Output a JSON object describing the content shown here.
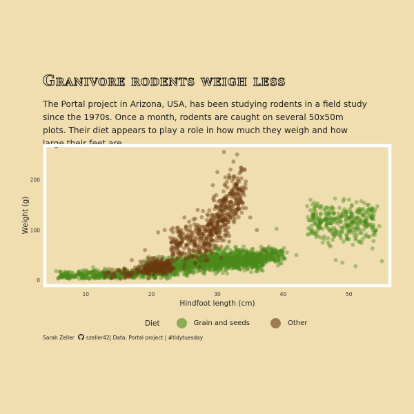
{
  "title": "Granivore rodents weigh less",
  "subtitle": "The Portal project in Arizona, USA, has been studying rodents in a field study since the 1970s. Once a month, rodents are caught on several 50x50m plots. Their diet appears to play a role in how much they weigh and how large their feet are.",
  "caption": {
    "author": "Sarah Zeller",
    "github_icon": "github-icon",
    "handle": "szeller42",
    "source": "| Data: Portal project | #tidytuesday"
  },
  "legend": {
    "title": "Diet",
    "items": [
      {
        "label": "Grain and seeds",
        "color": "#4a8a1a"
      },
      {
        "label": "Other",
        "color": "#6b3a10"
      }
    ]
  },
  "colors": {
    "background": "#f0deb0",
    "panel_border": "#ffffff",
    "grain": "#4a8a1a",
    "other": "#6b3a10"
  },
  "chart_data": {
    "type": "scatter",
    "xlabel": "Hindfoot length (cm)",
    "ylabel": "Weight (g)",
    "xlim": [
      4,
      56
    ],
    "ylim": [
      -8,
      265
    ],
    "x_ticks": [
      10,
      20,
      30,
      40,
      50
    ],
    "y_ticks": [
      0,
      100,
      200
    ],
    "grid": false,
    "legend_position": "bottom",
    "series": [
      {
        "name": "Grain and seeds",
        "color": "#4a8a1a",
        "clusters": [
          {
            "x_range": [
              6,
              19
            ],
            "y_center": [
              8,
              14
            ],
            "y_spread": 5,
            "n": 320
          },
          {
            "x_range": [
              19,
              29
            ],
            "y_center": [
              18,
              38
            ],
            "y_spread": 9,
            "n": 650
          },
          {
            "x_range": [
              29,
              37
            ],
            "y_center": [
              40,
              40
            ],
            "y_spread": 10,
            "n": 700
          },
          {
            "x_range": [
              37,
              40
            ],
            "y_center": [
              50,
              48
            ],
            "y_spread": 8,
            "n": 120
          },
          {
            "x_range": [
              44,
              54
            ],
            "y_center": [
              118,
              118
            ],
            "y_spread": 20,
            "n": 330
          }
        ],
        "points": [
          [
            5.5,
            18
          ],
          [
            6.5,
            8
          ],
          [
            7,
            14
          ],
          [
            21,
            47
          ],
          [
            30,
            62
          ],
          [
            34,
            67
          ],
          [
            38,
            55
          ],
          [
            39,
            102
          ],
          [
            44,
            92
          ],
          [
            46,
            75
          ],
          [
            47,
            70
          ],
          [
            48,
            40
          ],
          [
            49,
            35
          ],
          [
            50,
            160
          ],
          [
            51,
            28
          ],
          [
            53,
            150
          ],
          [
            54,
            140
          ],
          [
            55,
            38
          ],
          [
            28,
            15
          ],
          [
            42,
            50
          ]
        ]
      },
      {
        "name": "Other",
        "color": "#6b3a10",
        "clusters": [
          {
            "x_range": [
              13,
              19
            ],
            "y_center": [
              12,
              18
            ],
            "y_spread": 6,
            "n": 60
          },
          {
            "x_range": [
              19,
              23
            ],
            "y_center": [
              25,
              28
            ],
            "y_spread": 8,
            "n": 200
          },
          {
            "x_range": [
              23,
              29
            ],
            "y_center": [
              60,
              90
            ],
            "y_spread": 22,
            "n": 240
          },
          {
            "x_range": [
              29,
              34
            ],
            "y_center": [
              100,
              180
            ],
            "y_spread": 28,
            "n": 300
          }
        ],
        "points": [
          [
            17,
            40
          ],
          [
            19,
            60
          ],
          [
            21,
            95
          ],
          [
            22,
            100
          ],
          [
            24,
            105
          ],
          [
            25,
            125
          ],
          [
            30,
            215
          ],
          [
            31,
            255
          ],
          [
            32,
            220
          ],
          [
            33,
            250
          ],
          [
            27,
            140
          ],
          [
            23,
            75
          ],
          [
            36,
            100
          ],
          [
            35,
            125
          ],
          [
            37,
            60
          ],
          [
            15,
            20
          ],
          [
            16,
            5
          ]
        ]
      }
    ]
  }
}
